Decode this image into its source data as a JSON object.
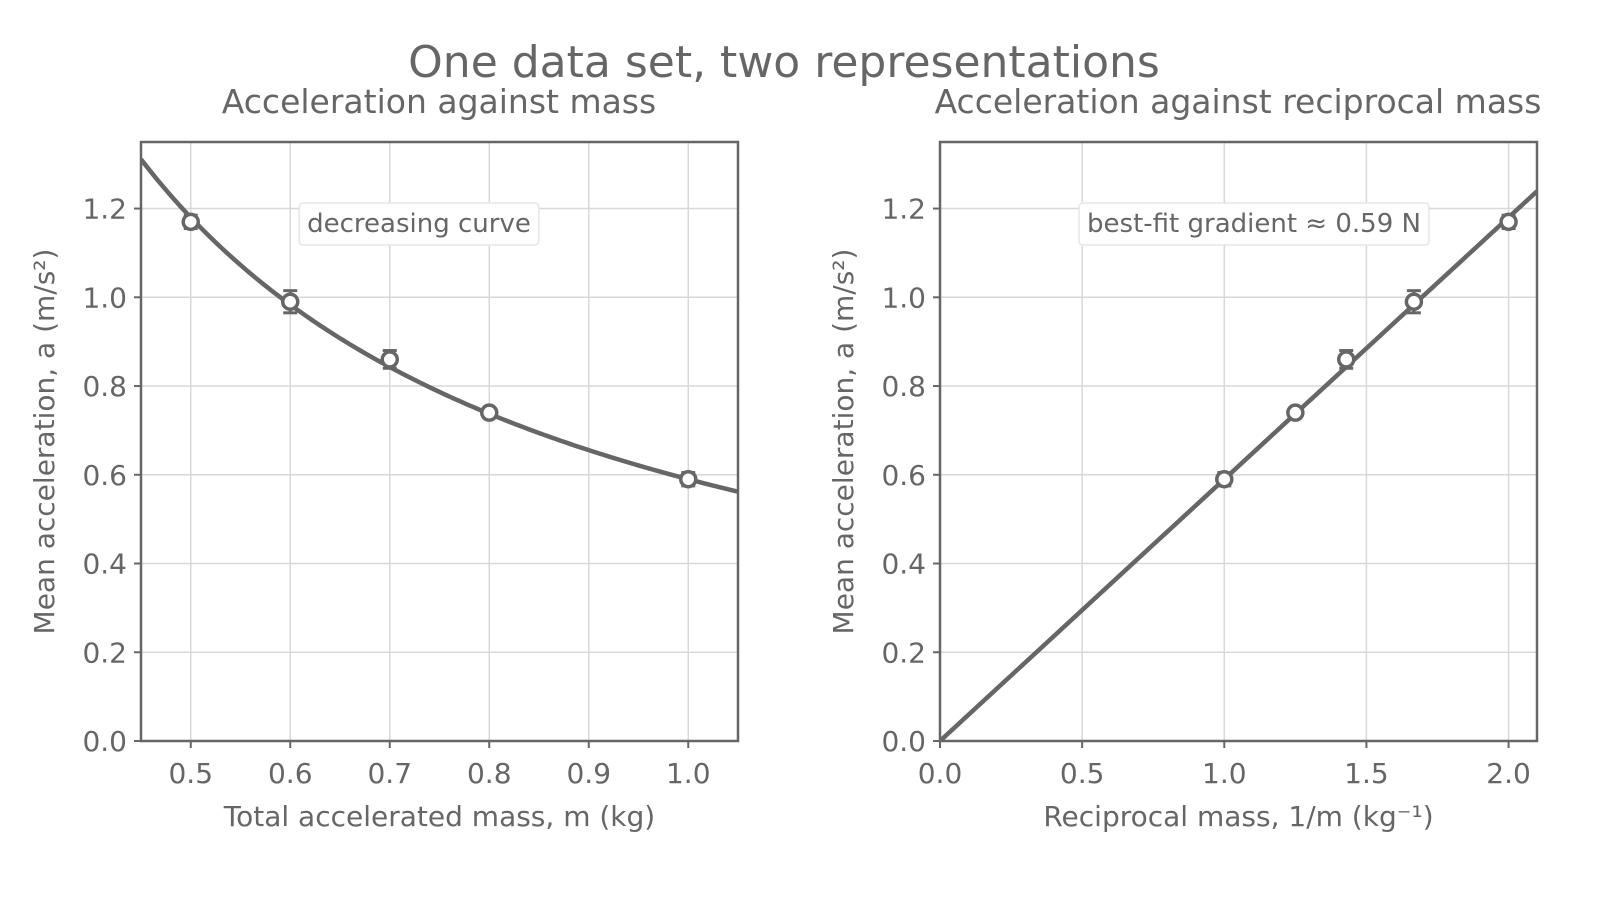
{
  "figure": {
    "title": "One data set, two representations"
  },
  "chart_data": [
    {
      "type": "scatter",
      "title": "Acceleration against mass",
      "xlabel": "Total accelerated mass, m (kg)",
      "ylabel": "Mean acceleration, a (m/s²)",
      "xlim": [
        0.45,
        1.05
      ],
      "ylim": [
        0.0,
        1.35
      ],
      "xticks": [
        0.5,
        0.6,
        0.7,
        0.8,
        0.9,
        1.0
      ],
      "xtick_labels": [
        "0.5",
        "0.6",
        "0.7",
        "0.8",
        "0.9",
        "1.0"
      ],
      "yticks": [
        0.0,
        0.2,
        0.4,
        0.6,
        0.8,
        1.0,
        1.2
      ],
      "ytick_labels": [
        "0.0",
        "0.2",
        "0.4",
        "0.6",
        "0.8",
        "1.0",
        "1.2"
      ],
      "grid": true,
      "points": [
        {
          "x": 0.5,
          "y": 1.17,
          "err": 0.015
        },
        {
          "x": 0.6,
          "y": 0.99,
          "err": 0.025
        },
        {
          "x": 0.7,
          "y": 0.86,
          "err": 0.02
        },
        {
          "x": 0.8,
          "y": 0.74,
          "err": 0.01
        },
        {
          "x": 1.0,
          "y": 0.59,
          "err": 0.015
        }
      ],
      "fit": {
        "form": "a = F/m",
        "F": 0.59
      },
      "annotation": "decreasing curve"
    },
    {
      "type": "scatter",
      "title": "Acceleration against reciprocal mass",
      "xlabel": "Reciprocal mass, 1/m (kg⁻¹)",
      "ylabel": "Mean acceleration, a (m/s²)",
      "xlim": [
        0.0,
        2.1
      ],
      "ylim": [
        0.0,
        1.35
      ],
      "xticks": [
        0.0,
        0.5,
        1.0,
        1.5,
        2.0
      ],
      "xtick_labels": [
        "0.0",
        "0.5",
        "1.0",
        "1.5",
        "2.0"
      ],
      "yticks": [
        0.0,
        0.2,
        0.4,
        0.6,
        0.8,
        1.0,
        1.2
      ],
      "ytick_labels": [
        "0.0",
        "0.2",
        "0.4",
        "0.6",
        "0.8",
        "1.0",
        "1.2"
      ],
      "grid": true,
      "points": [
        {
          "x": 2.0,
          "y": 1.17,
          "err": 0.015
        },
        {
          "x": 1.667,
          "y": 0.99,
          "err": 0.025
        },
        {
          "x": 1.429,
          "y": 0.86,
          "err": 0.02
        },
        {
          "x": 1.25,
          "y": 0.74,
          "err": 0.01
        },
        {
          "x": 1.0,
          "y": 0.59,
          "err": 0.015
        }
      ],
      "fit": {
        "form": "a = k·(1/m)",
        "gradient": 0.59
      },
      "annotation": "best-fit gradient ≈ 0.59 N"
    }
  ]
}
